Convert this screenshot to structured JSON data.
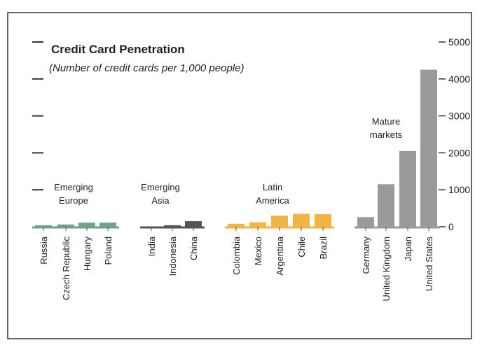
{
  "chart_data": {
    "type": "bar",
    "title": "Credit Card Penetration",
    "subtitle": "(Number of credit cards per 1,000 people)",
    "ylim": [
      0,
      5000
    ],
    "yticks": [
      "0",
      "1000",
      "2000",
      "3000",
      "4000",
      "5000"
    ],
    "y_axis_side": "right",
    "categories": [
      "Russia",
      "Czech Republic",
      "Hungary",
      "Poland",
      "India",
      "Indonesia",
      "China",
      "Colombia",
      "Mexico",
      "Argentina",
      "Chile",
      "Brazil",
      "Germany",
      "United Kingdom",
      "Japan",
      "United States"
    ],
    "values": [
      40,
      60,
      110,
      110,
      0,
      40,
      150,
      80,
      120,
      300,
      350,
      340,
      260,
      1150,
      2050,
      4250
    ],
    "groups": [
      {
        "lines": [
          "Emerging",
          "Europe"
        ],
        "categories": [
          "Russia",
          "Czech Republic",
          "Hungary",
          "Poland"
        ],
        "color": "#6fa388"
      },
      {
        "lines": [
          "Emerging",
          "Asia"
        ],
        "categories": [
          "India",
          "Indonesia",
          "China"
        ],
        "color": "#555555"
      },
      {
        "lines": [
          "Latin",
          "America"
        ],
        "categories": [
          "Colombia",
          "Mexico",
          "Argentina",
          "Chile",
          "Brazil"
        ],
        "color": "#f2b544"
      },
      {
        "lines": [
          "Mature",
          "markets"
        ],
        "categories": [
          "Germany",
          "United Kingdom",
          "Japan",
          "United States"
        ],
        "color": "#9a9a9a"
      }
    ]
  }
}
